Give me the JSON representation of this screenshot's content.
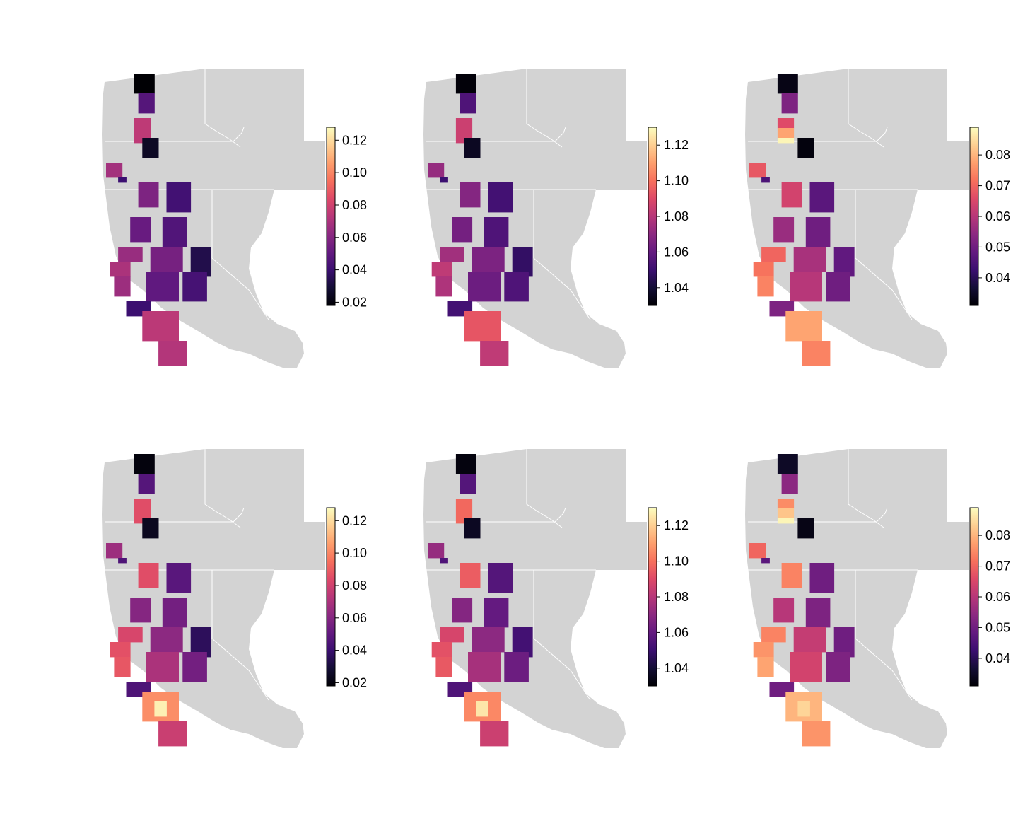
{
  "colors": {
    "land": "#d3d3d3",
    "border": "#ffffff",
    "palette": "magma",
    "palette_stops": [
      "#000004",
      "#140e36",
      "#3b0f70",
      "#641a80",
      "#8c2981",
      "#b73779",
      "#de4968",
      "#f7705c",
      "#fe9f6d",
      "#fecf92",
      "#fcfdbf"
    ]
  },
  "panels": [
    {
      "id": "top-left",
      "legend": {
        "min": 0.018,
        "max": 0.128,
        "ticks": [
          0.02,
          0.04,
          0.06,
          0.08,
          0.1,
          0.12
        ],
        "tick_labels": [
          "0.02",
          "0.04",
          "0.06",
          "0.08",
          "0.10",
          "0.12"
        ]
      },
      "cells": [
        {
          "row": 2,
          "col": 7,
          "w": 5,
          "h": 4,
          "v": 0.018
        },
        {
          "row": 6,
          "col": 8,
          "w": 4,
          "h": 4,
          "v": 0.047
        },
        {
          "row": 11,
          "col": 7,
          "w": 4,
          "h": 5,
          "v": 0.075
        },
        {
          "row": 15,
          "col": 9,
          "w": 4,
          "h": 4,
          "v": 0.025
        },
        {
          "row": 20,
          "col": 0,
          "w": 4,
          "h": 3,
          "v": 0.068
        },
        {
          "row": 23,
          "col": 3,
          "w": 2,
          "h": 1,
          "v": 0.04
        },
        {
          "row": 24,
          "col": 8,
          "w": 5,
          "h": 5,
          "v": 0.058
        },
        {
          "row": 24,
          "col": 15,
          "w": 6,
          "h": 6,
          "v": 0.042
        },
        {
          "row": 31,
          "col": 6,
          "w": 5,
          "h": 5,
          "v": 0.052
        },
        {
          "row": 31,
          "col": 14,
          "w": 6,
          "h": 6,
          "v": 0.046
        },
        {
          "row": 37,
          "col": 3,
          "w": 6,
          "h": 3,
          "v": 0.065
        },
        {
          "row": 37,
          "col": 11,
          "w": 8,
          "h": 5,
          "v": 0.056
        },
        {
          "row": 37,
          "col": 21,
          "w": 5,
          "h": 6,
          "v": 0.033
        },
        {
          "row": 40,
          "col": 1,
          "w": 5,
          "h": 3,
          "v": 0.07
        },
        {
          "row": 43,
          "col": 2,
          "w": 4,
          "h": 4,
          "v": 0.066
        },
        {
          "row": 42,
          "col": 10,
          "w": 8,
          "h": 6,
          "v": 0.05
        },
        {
          "row": 42,
          "col": 19,
          "w": 6,
          "h": 6,
          "v": 0.043
        },
        {
          "row": 48,
          "col": 5,
          "w": 6,
          "h": 3,
          "v": 0.04
        },
        {
          "row": 50,
          "col": 9,
          "w": 9,
          "h": 6,
          "v": 0.074
        },
        {
          "row": 56,
          "col": 13,
          "w": 7,
          "h": 5,
          "v": 0.072
        }
      ]
    },
    {
      "id": "top-middle",
      "legend": {
        "min": 1.03,
        "max": 1.13,
        "ticks": [
          1.04,
          1.06,
          1.08,
          1.1,
          1.12
        ],
        "tick_labels": [
          "1.04",
          "1.06",
          "1.08",
          "1.10",
          "1.12"
        ]
      },
      "cells": [
        {
          "row": 2,
          "col": 7,
          "w": 5,
          "h": 4,
          "v": 1.031
        },
        {
          "row": 6,
          "col": 8,
          "w": 4,
          "h": 4,
          "v": 1.055
        },
        {
          "row": 11,
          "col": 7,
          "w": 4,
          "h": 5,
          "v": 1.085
        },
        {
          "row": 15,
          "col": 9,
          "w": 4,
          "h": 4,
          "v": 1.036
        },
        {
          "row": 20,
          "col": 0,
          "w": 4,
          "h": 3,
          "v": 1.072
        },
        {
          "row": 23,
          "col": 3,
          "w": 2,
          "h": 1,
          "v": 1.05
        },
        {
          "row": 24,
          "col": 8,
          "w": 5,
          "h": 5,
          "v": 1.068
        },
        {
          "row": 24,
          "col": 15,
          "w": 6,
          "h": 6,
          "v": 1.052
        },
        {
          "row": 31,
          "col": 6,
          "w": 5,
          "h": 5,
          "v": 1.064
        },
        {
          "row": 31,
          "col": 14,
          "w": 6,
          "h": 6,
          "v": 1.055
        },
        {
          "row": 37,
          "col": 3,
          "w": 6,
          "h": 3,
          "v": 1.075
        },
        {
          "row": 37,
          "col": 11,
          "w": 8,
          "h": 5,
          "v": 1.066
        },
        {
          "row": 37,
          "col": 21,
          "w": 5,
          "h": 6,
          "v": 1.048
        },
        {
          "row": 40,
          "col": 1,
          "w": 5,
          "h": 3,
          "v": 1.082
        },
        {
          "row": 43,
          "col": 2,
          "w": 4,
          "h": 4,
          "v": 1.078
        },
        {
          "row": 42,
          "col": 10,
          "w": 8,
          "h": 6,
          "v": 1.062
        },
        {
          "row": 42,
          "col": 19,
          "w": 6,
          "h": 6,
          "v": 1.055
        },
        {
          "row": 48,
          "col": 5,
          "w": 6,
          "h": 3,
          "v": 1.052
        },
        {
          "row": 50,
          "col": 9,
          "w": 9,
          "h": 6,
          "v": 1.093
        },
        {
          "row": 56,
          "col": 13,
          "w": 7,
          "h": 5,
          "v": 1.082
        }
      ]
    },
    {
      "id": "top-right",
      "legend": {
        "min": 0.031,
        "max": 0.089,
        "ticks": [
          0.04,
          0.05,
          0.06,
          0.07,
          0.08
        ],
        "tick_labels": [
          "0.04",
          "0.05",
          "0.06",
          "0.07",
          "0.08"
        ]
      },
      "cells": [
        {
          "row": 2,
          "col": 7,
          "w": 5,
          "h": 4,
          "v": 0.033
        },
        {
          "row": 6,
          "col": 8,
          "w": 4,
          "h": 4,
          "v": 0.052
        },
        {
          "row": 11,
          "col": 7,
          "w": 4,
          "h": 2,
          "v": 0.066
        },
        {
          "row": 13,
          "col": 7,
          "w": 4,
          "h": 2,
          "v": 0.078
        },
        {
          "row": 15,
          "col": 7,
          "w": 4,
          "h": 1,
          "v": 0.088
        },
        {
          "row": 15,
          "col": 12,
          "w": 4,
          "h": 4,
          "v": 0.032
        },
        {
          "row": 20,
          "col": 0,
          "w": 4,
          "h": 3,
          "v": 0.068
        },
        {
          "row": 23,
          "col": 3,
          "w": 2,
          "h": 1,
          "v": 0.045
        },
        {
          "row": 24,
          "col": 8,
          "w": 5,
          "h": 5,
          "v": 0.064
        },
        {
          "row": 24,
          "col": 15,
          "w": 6,
          "h": 6,
          "v": 0.047
        },
        {
          "row": 31,
          "col": 6,
          "w": 5,
          "h": 5,
          "v": 0.056
        },
        {
          "row": 31,
          "col": 14,
          "w": 6,
          "h": 6,
          "v": 0.05
        },
        {
          "row": 37,
          "col": 3,
          "w": 6,
          "h": 3,
          "v": 0.07
        },
        {
          "row": 37,
          "col": 11,
          "w": 8,
          "h": 5,
          "v": 0.058
        },
        {
          "row": 37,
          "col": 21,
          "w": 5,
          "h": 6,
          "v": 0.048
        },
        {
          "row": 40,
          "col": 1,
          "w": 5,
          "h": 3,
          "v": 0.072
        },
        {
          "row": 43,
          "col": 2,
          "w": 4,
          "h": 4,
          "v": 0.074
        },
        {
          "row": 42,
          "col": 10,
          "w": 8,
          "h": 6,
          "v": 0.06
        },
        {
          "row": 42,
          "col": 19,
          "w": 6,
          "h": 6,
          "v": 0.05
        },
        {
          "row": 48,
          "col": 5,
          "w": 6,
          "h": 3,
          "v": 0.052
        },
        {
          "row": 50,
          "col": 9,
          "w": 9,
          "h": 6,
          "v": 0.078
        },
        {
          "row": 56,
          "col": 13,
          "w": 7,
          "h": 5,
          "v": 0.074
        }
      ]
    },
    {
      "id": "bottom-left",
      "legend": {
        "min": 0.018,
        "max": 0.128,
        "ticks": [
          0.02,
          0.04,
          0.06,
          0.08,
          0.1,
          0.12
        ],
        "tick_labels": [
          "0.02",
          "0.04",
          "0.06",
          "0.08",
          "0.10",
          "0.12"
        ]
      },
      "cells": [
        {
          "row": 2,
          "col": 7,
          "w": 5,
          "h": 4,
          "v": 0.02
        },
        {
          "row": 6,
          "col": 8,
          "w": 4,
          "h": 4,
          "v": 0.047
        },
        {
          "row": 11,
          "col": 7,
          "w": 4,
          "h": 5,
          "v": 0.085
        },
        {
          "row": 15,
          "col": 9,
          "w": 4,
          "h": 4,
          "v": 0.024
        },
        {
          "row": 20,
          "col": 0,
          "w": 4,
          "h": 3,
          "v": 0.066
        },
        {
          "row": 23,
          "col": 3,
          "w": 2,
          "h": 1,
          "v": 0.045
        },
        {
          "row": 24,
          "col": 8,
          "w": 5,
          "h": 5,
          "v": 0.085
        },
        {
          "row": 24,
          "col": 15,
          "w": 6,
          "h": 6,
          "v": 0.048
        },
        {
          "row": 31,
          "col": 6,
          "w": 5,
          "h": 5,
          "v": 0.06
        },
        {
          "row": 31,
          "col": 14,
          "w": 6,
          "h": 6,
          "v": 0.055
        },
        {
          "row": 37,
          "col": 3,
          "w": 6,
          "h": 3,
          "v": 0.082
        },
        {
          "row": 37,
          "col": 11,
          "w": 8,
          "h": 5,
          "v": 0.062
        },
        {
          "row": 37,
          "col": 21,
          "w": 5,
          "h": 6,
          "v": 0.036
        },
        {
          "row": 40,
          "col": 1,
          "w": 5,
          "h": 3,
          "v": 0.086
        },
        {
          "row": 43,
          "col": 2,
          "w": 4,
          "h": 4,
          "v": 0.088
        },
        {
          "row": 42,
          "col": 10,
          "w": 8,
          "h": 6,
          "v": 0.07
        },
        {
          "row": 42,
          "col": 19,
          "w": 6,
          "h": 6,
          "v": 0.055
        },
        {
          "row": 48,
          "col": 5,
          "w": 6,
          "h": 3,
          "v": 0.045
        },
        {
          "row": 50,
          "col": 9,
          "w": 9,
          "h": 6,
          "v": 0.102
        },
        {
          "row": 52,
          "col": 12,
          "w": 3,
          "h": 3,
          "v": 0.125
        },
        {
          "row": 56,
          "col": 13,
          "w": 7,
          "h": 5,
          "v": 0.078
        }
      ]
    },
    {
      "id": "bottom-middle",
      "legend": {
        "min": 1.03,
        "max": 1.13,
        "ticks": [
          1.04,
          1.06,
          1.08,
          1.1,
          1.12
        ],
        "tick_labels": [
          "1.04",
          "1.06",
          "1.08",
          "1.10",
          "1.12"
        ]
      },
      "cells": [
        {
          "row": 2,
          "col": 7,
          "w": 5,
          "h": 4,
          "v": 1.032
        },
        {
          "row": 6,
          "col": 8,
          "w": 4,
          "h": 4,
          "v": 1.056
        },
        {
          "row": 11,
          "col": 7,
          "w": 4,
          "h": 5,
          "v": 1.098
        },
        {
          "row": 15,
          "col": 9,
          "w": 4,
          "h": 4,
          "v": 1.036
        },
        {
          "row": 20,
          "col": 0,
          "w": 4,
          "h": 3,
          "v": 1.072
        },
        {
          "row": 23,
          "col": 3,
          "w": 2,
          "h": 1,
          "v": 1.055
        },
        {
          "row": 24,
          "col": 8,
          "w": 5,
          "h": 5,
          "v": 1.095
        },
        {
          "row": 24,
          "col": 15,
          "w": 6,
          "h": 6,
          "v": 1.056
        },
        {
          "row": 31,
          "col": 6,
          "w": 5,
          "h": 5,
          "v": 1.068
        },
        {
          "row": 31,
          "col": 14,
          "w": 6,
          "h": 6,
          "v": 1.06
        },
        {
          "row": 37,
          "col": 3,
          "w": 6,
          "h": 3,
          "v": 1.088
        },
        {
          "row": 37,
          "col": 11,
          "w": 8,
          "h": 5,
          "v": 1.07
        },
        {
          "row": 37,
          "col": 21,
          "w": 5,
          "h": 6,
          "v": 1.052
        },
        {
          "row": 40,
          "col": 1,
          "w": 5,
          "h": 3,
          "v": 1.092
        },
        {
          "row": 43,
          "col": 2,
          "w": 4,
          "h": 4,
          "v": 1.094
        },
        {
          "row": 42,
          "col": 10,
          "w": 8,
          "h": 6,
          "v": 1.076
        },
        {
          "row": 42,
          "col": 19,
          "w": 6,
          "h": 6,
          "v": 1.062
        },
        {
          "row": 48,
          "col": 5,
          "w": 6,
          "h": 3,
          "v": 1.055
        },
        {
          "row": 50,
          "col": 9,
          "w": 9,
          "h": 6,
          "v": 1.105
        },
        {
          "row": 52,
          "col": 12,
          "w": 3,
          "h": 3,
          "v": 1.125
        },
        {
          "row": 56,
          "col": 13,
          "w": 7,
          "h": 5,
          "v": 1.085
        }
      ]
    },
    {
      "id": "bottom-right",
      "legend": {
        "min": 0.031,
        "max": 0.089,
        "ticks": [
          0.04,
          0.05,
          0.06,
          0.07,
          0.08
        ],
        "tick_labels": [
          "0.04",
          "0.05",
          "0.06",
          "0.07",
          "0.08"
        ]
      },
      "cells": [
        {
          "row": 2,
          "col": 7,
          "w": 5,
          "h": 4,
          "v": 0.035
        },
        {
          "row": 6,
          "col": 8,
          "w": 4,
          "h": 4,
          "v": 0.054
        },
        {
          "row": 11,
          "col": 7,
          "w": 4,
          "h": 2,
          "v": 0.075
        },
        {
          "row": 13,
          "col": 7,
          "w": 4,
          "h": 2,
          "v": 0.082
        },
        {
          "row": 15,
          "col": 7,
          "w": 4,
          "h": 1,
          "v": 0.088
        },
        {
          "row": 15,
          "col": 12,
          "w": 4,
          "h": 4,
          "v": 0.033
        },
        {
          "row": 20,
          "col": 0,
          "w": 4,
          "h": 3,
          "v": 0.07
        },
        {
          "row": 23,
          "col": 3,
          "w": 2,
          "h": 1,
          "v": 0.047
        },
        {
          "row": 24,
          "col": 8,
          "w": 5,
          "h": 5,
          "v": 0.074
        },
        {
          "row": 24,
          "col": 15,
          "w": 6,
          "h": 6,
          "v": 0.05
        },
        {
          "row": 31,
          "col": 6,
          "w": 5,
          "h": 5,
          "v": 0.06
        },
        {
          "row": 31,
          "col": 14,
          "w": 6,
          "h": 6,
          "v": 0.052
        },
        {
          "row": 37,
          "col": 3,
          "w": 6,
          "h": 3,
          "v": 0.074
        },
        {
          "row": 37,
          "col": 11,
          "w": 8,
          "h": 5,
          "v": 0.062
        },
        {
          "row": 37,
          "col": 21,
          "w": 5,
          "h": 6,
          "v": 0.05
        },
        {
          "row": 40,
          "col": 1,
          "w": 5,
          "h": 3,
          "v": 0.076
        },
        {
          "row": 43,
          "col": 2,
          "w": 4,
          "h": 4,
          "v": 0.078
        },
        {
          "row": 42,
          "col": 10,
          "w": 8,
          "h": 6,
          "v": 0.064
        },
        {
          "row": 42,
          "col": 19,
          "w": 6,
          "h": 6,
          "v": 0.052
        },
        {
          "row": 48,
          "col": 5,
          "w": 6,
          "h": 3,
          "v": 0.05
        },
        {
          "row": 50,
          "col": 9,
          "w": 9,
          "h": 6,
          "v": 0.08
        },
        {
          "row": 52,
          "col": 12,
          "w": 3,
          "h": 3,
          "v": 0.084
        },
        {
          "row": 56,
          "col": 13,
          "w": 7,
          "h": 5,
          "v": 0.076
        }
      ]
    }
  ]
}
